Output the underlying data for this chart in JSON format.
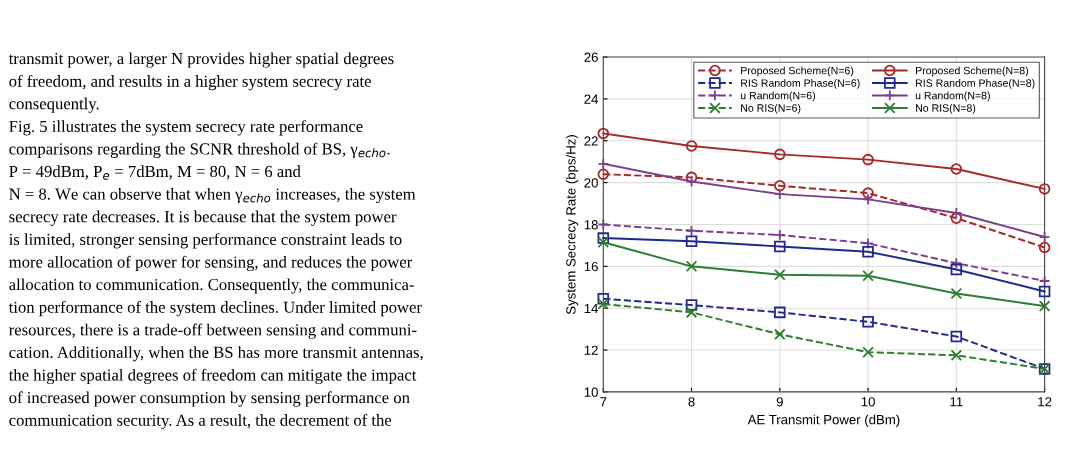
{
  "chart_data": {
    "type": "line",
    "xlabel": "AE Transmit Power (dBm)",
    "ylabel": "System Secrecy Rate (bps/Hz)",
    "x": [
      7,
      8,
      9,
      10,
      11,
      12
    ],
    "xlim": [
      7,
      12
    ],
    "xticks": [
      7,
      8,
      9,
      10,
      11,
      12
    ],
    "ylim": [
      10,
      26
    ],
    "yticks": [
      10,
      12,
      14,
      16,
      18,
      20,
      22,
      24,
      26
    ],
    "grid": true,
    "legend": "top right",
    "series": [
      {
        "name": "Proposed Scheme(N=6)",
        "color": "#a52a2a",
        "marker": "circle",
        "line_style": "dashed",
        "values": [
          20.4,
          20.25,
          19.85,
          19.5,
          18.3,
          16.9
        ]
      },
      {
        "name": "RIS Random Phase(N=6)",
        "color": "#1f2a8c",
        "marker": "square",
        "line_style": "dashed",
        "values": [
          14.45,
          14.15,
          13.8,
          13.35,
          12.65,
          11.1
        ]
      },
      {
        "name": "u Random(N=6)",
        "color": "#7b3f8c",
        "marker": "plus",
        "line_style": "dashed",
        "values": [
          18.0,
          17.7,
          17.5,
          17.1,
          16.15,
          15.3
        ]
      },
      {
        "name": "No RIS(N=6)",
        "color": "#2e7d32",
        "marker": "cross",
        "line_style": "dashed",
        "values": [
          14.2,
          13.8,
          12.75,
          11.9,
          11.75,
          11.1
        ]
      },
      {
        "name": "Proposed Scheme(N=8)",
        "color": "#a52a2a",
        "marker": "circle",
        "line_style": "solid",
        "values": [
          22.35,
          21.75,
          21.35,
          21.1,
          20.65,
          19.7
        ]
      },
      {
        "name": "RIS Random Phase(N=8)",
        "color": "#1f2a8c",
        "marker": "square",
        "line_style": "solid",
        "values": [
          17.35,
          17.2,
          16.95,
          16.7,
          15.85,
          14.8
        ]
      },
      {
        "name": "u Random(N=8)",
        "color": "#7b3f8c",
        "marker": "plus",
        "line_style": "solid",
        "values": [
          20.9,
          20.05,
          19.45,
          19.2,
          18.55,
          17.4
        ]
      },
      {
        "name": "No RIS(N=8)",
        "color": "#2e7d32",
        "marker": "cross",
        "line_style": "solid",
        "values": [
          17.15,
          16.0,
          15.6,
          15.55,
          14.7,
          14.1
        ]
      }
    ],
    "annotations": [
      "transmit power, a larger N provides higher spatial degrees",
      "of freedom, and results in a higher system secrecy rate",
      "consequently.",
      "Fig. 5 illustrates the system secrecy rate performance",
      "comparisons regarding the SCNR threshold of BS, γ$_{echo}$.",
      "P = 49dBm, P$_{e}$ = 7dBm, M = 80, N = 6 and",
      "N = 8. We can observe that when γ$_{echo}$ increases, the system",
      "secrecy rate decreases. It is because that the system power",
      "is limited, stronger sensing performance constraint leads to",
      "more allocation of power for sensing, and reduces the power",
      "allocation to communication. Consequently, the communica-",
      "tion performance of the system declines. Under limited power",
      "resources, there is a trade-off between sensing and communi-",
      "cation. Additionally, when the BS has more transmit antennas,",
      "the higher spatial degrees of freedom can mitigate the impact",
      "of increased power consumption by sensing performance on",
      "communication security. As a result, the decrement of the"
    ]
  }
}
